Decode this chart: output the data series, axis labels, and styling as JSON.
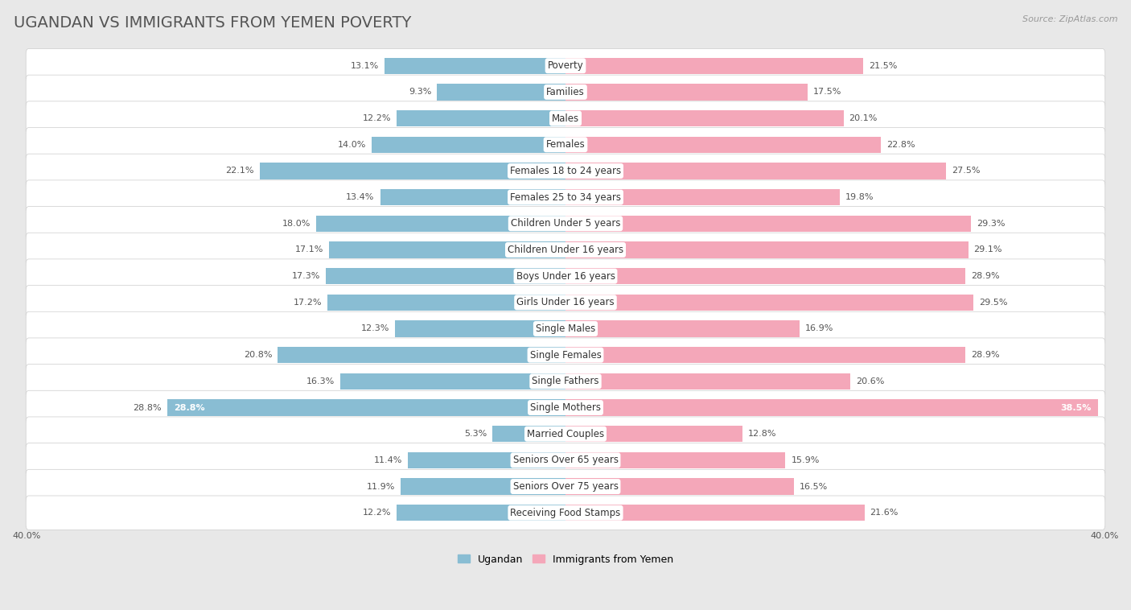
{
  "title": "UGANDAN VS IMMIGRANTS FROM YEMEN POVERTY",
  "source": "Source: ZipAtlas.com",
  "categories": [
    "Poverty",
    "Families",
    "Males",
    "Females",
    "Females 18 to 24 years",
    "Females 25 to 34 years",
    "Children Under 5 years",
    "Children Under 16 years",
    "Boys Under 16 years",
    "Girls Under 16 years",
    "Single Males",
    "Single Females",
    "Single Fathers",
    "Single Mothers",
    "Married Couples",
    "Seniors Over 65 years",
    "Seniors Over 75 years",
    "Receiving Food Stamps"
  ],
  "ugandan": [
    13.1,
    9.3,
    12.2,
    14.0,
    22.1,
    13.4,
    18.0,
    17.1,
    17.3,
    17.2,
    12.3,
    20.8,
    16.3,
    28.8,
    5.3,
    11.4,
    11.9,
    12.2
  ],
  "yemen": [
    21.5,
    17.5,
    20.1,
    22.8,
    27.5,
    19.8,
    29.3,
    29.1,
    28.9,
    29.5,
    16.9,
    28.9,
    20.6,
    38.5,
    12.8,
    15.9,
    16.5,
    21.6
  ],
  "ugandan_color": "#89bdd3",
  "yemen_color": "#f4a7b9",
  "bg_color": "#e8e8e8",
  "row_white_color": "#ffffff",
  "row_gray_color": "#e0e0e0",
  "axis_limit": 40.0,
  "legend_ugandan": "Ugandan",
  "legend_yemen": "Immigrants from Yemen",
  "title_fontsize": 14,
  "label_fontsize": 8.5,
  "value_fontsize": 8.0,
  "source_fontsize": 8
}
